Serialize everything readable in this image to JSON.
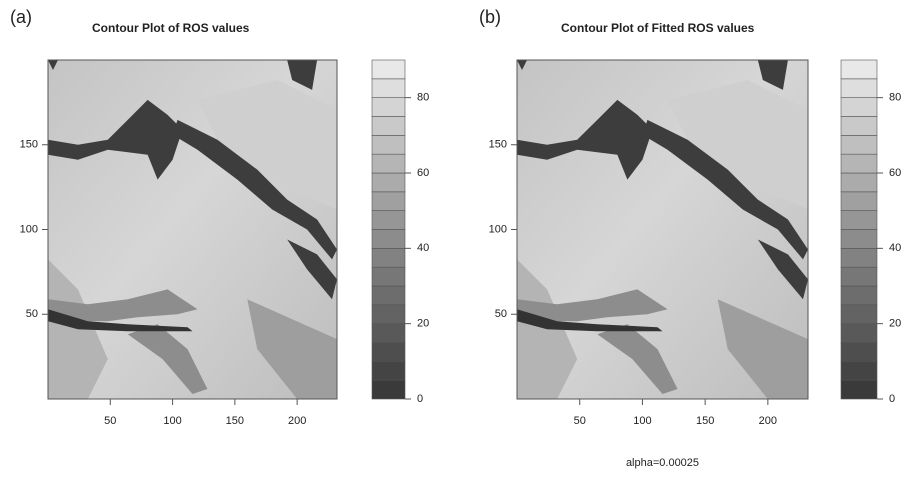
{
  "chart_data": [
    {
      "type": "contour",
      "panel": "(a)",
      "title": "Contour Plot of ROS values",
      "xlim": [
        0,
        232
      ],
      "xticks": [
        50,
        100,
        150,
        200
      ],
      "ylim": [
        0,
        200
      ],
      "yticks": [
        50,
        100,
        150
      ],
      "colorbar_lim": [
        0,
        90
      ],
      "colorbar_levels": [
        0,
        5,
        10,
        15,
        20,
        25,
        30,
        35,
        40,
        45,
        50,
        55,
        60,
        65,
        70,
        75,
        80,
        85,
        90
      ],
      "colorbar_ticks": [
        0,
        20,
        40,
        60,
        80
      ],
      "colormap": [
        "#3a3a3a",
        "#e8e8e8"
      ]
    },
    {
      "type": "contour",
      "panel": "(b)",
      "title": "Contour Plot of Fitted ROS values",
      "annotation": "alpha=0.00025",
      "xlim": [
        0,
        232
      ],
      "xticks": [
        50,
        100,
        150,
        200
      ],
      "ylim": [
        0,
        200
      ],
      "yticks": [
        50,
        100,
        150
      ],
      "colorbar_lim": [
        0,
        90
      ],
      "colorbar_levels": [
        0,
        5,
        10,
        15,
        20,
        25,
        30,
        35,
        40,
        45,
        50,
        55,
        60,
        65,
        70,
        75,
        80,
        85,
        90
      ],
      "colorbar_ticks": [
        0,
        20,
        40,
        60,
        80
      ],
      "colormap": [
        "#3a3a3a",
        "#e8e8e8"
      ]
    }
  ]
}
